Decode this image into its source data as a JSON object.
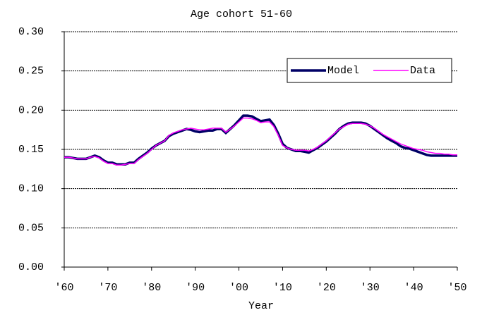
{
  "chart_data": {
    "type": "line",
    "title": "Age cohort 51-60",
    "x_label": "Year",
    "categories": [
      "'60",
      null,
      null,
      null,
      null,
      null,
      null,
      null,
      null,
      null,
      "'70",
      null,
      null,
      null,
      null,
      null,
      null,
      null,
      null,
      null,
      "'80",
      null,
      null,
      null,
      null,
      null,
      null,
      null,
      null,
      null,
      "'90",
      null,
      null,
      null,
      null,
      null,
      null,
      null,
      null,
      null,
      "'00",
      null,
      null,
      null,
      null,
      null,
      null,
      null,
      null,
      null,
      "'10",
      null,
      null,
      null,
      null,
      null,
      null,
      null,
      null,
      null,
      "'20",
      null,
      null,
      null,
      null,
      null,
      null,
      null,
      null,
      null,
      "'30",
      null,
      null,
      null,
      null,
      null,
      null,
      null,
      null,
      null,
      "'40",
      null,
      null,
      null,
      null,
      null,
      null,
      null,
      null,
      null,
      "'50"
    ],
    "series": [
      {
        "name": "Model",
        "color": "#000066",
        "values": [
          0.14,
          0.14,
          0.139,
          0.138,
          0.138,
          0.138,
          0.14,
          0.142,
          0.14,
          0.136,
          0.133,
          0.133,
          0.131,
          0.131,
          0.131,
          0.133,
          0.133,
          0.138,
          0.142,
          0.146,
          0.151,
          0.155,
          0.158,
          0.161,
          0.167,
          0.17,
          0.172,
          0.174,
          0.176,
          0.175,
          0.173,
          0.172,
          0.173,
          0.174,
          0.174,
          0.176,
          0.176,
          0.171,
          0.176,
          0.181,
          0.187,
          0.193,
          0.193,
          0.192,
          0.189,
          0.186,
          0.187,
          0.188,
          0.181,
          0.17,
          0.157,
          0.152,
          0.15,
          0.148,
          0.148,
          0.147,
          0.146,
          0.149,
          0.152,
          0.156,
          0.16,
          0.165,
          0.17,
          0.176,
          0.18,
          0.183,
          0.184,
          0.184,
          0.184,
          0.183,
          0.18,
          0.176,
          0.172,
          0.168,
          0.164,
          0.161,
          0.158,
          0.154,
          0.152,
          0.151,
          0.149,
          0.147,
          0.145,
          0.143,
          0.142,
          0.142,
          0.142,
          0.142,
          0.142,
          0.142,
          0.142
        ]
      },
      {
        "name": "Data",
        "color": "#ff00ff",
        "values": [
          0.14,
          0.14,
          0.139,
          0.138,
          0.138,
          0.138,
          0.14,
          0.141,
          0.139,
          0.135,
          0.132,
          0.132,
          0.13,
          0.13,
          0.131,
          0.132,
          0.132,
          0.137,
          0.141,
          0.145,
          0.15,
          0.155,
          0.158,
          0.161,
          0.168,
          0.171,
          0.173,
          0.175,
          0.176,
          0.177,
          0.176,
          0.175,
          0.175,
          0.176,
          0.177,
          0.177,
          0.177,
          0.172,
          0.176,
          0.18,
          0.185,
          0.19,
          0.19,
          0.189,
          0.187,
          0.184,
          0.185,
          0.185,
          0.179,
          0.168,
          0.155,
          0.152,
          0.15,
          0.149,
          0.149,
          0.149,
          0.148,
          0.15,
          0.153,
          0.157,
          0.161,
          0.166,
          0.171,
          0.176,
          0.179,
          0.182,
          0.183,
          0.183,
          0.183,
          0.182,
          0.18,
          0.177,
          0.173,
          0.169,
          0.166,
          0.163,
          0.16,
          0.157,
          0.155,
          0.153,
          0.151,
          0.15,
          0.149,
          0.147,
          0.146,
          0.145,
          0.145,
          0.144,
          0.144,
          0.143,
          0.143
        ]
      }
    ],
    "ylim": [
      0,
      0.3
    ],
    "yticks": [
      {
        "value": 0,
        "label": "0.00"
      },
      0.05,
      {
        "value": 0.1,
        "label": "0.10"
      },
      0.15,
      {
        "value": 0.2,
        "label": "0.20"
      },
      0.25,
      {
        "value": 0.3,
        "label": "0.30"
      }
    ],
    "grid": true,
    "legend": "upper-right"
  }
}
